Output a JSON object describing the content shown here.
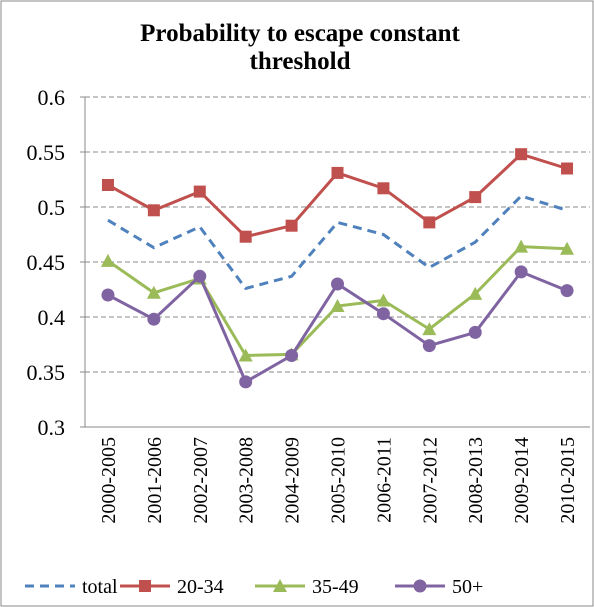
{
  "chart_data": {
    "type": "line",
    "title": "Probability to escape constant threshold",
    "categories": [
      "2000-2005",
      "2001-2006",
      "2002-2007",
      "2003-2008",
      "2004-2009",
      "2005-2010",
      "2006-2011",
      "2007-2012",
      "2008-2013",
      "2009-2014",
      "2010-2015"
    ],
    "series": [
      {
        "name": "total",
        "color": "#4f81bd",
        "dash": true,
        "marker": "none",
        "values": [
          0.488,
          0.463,
          0.482,
          0.426,
          0.437,
          0.486,
          0.475,
          0.445,
          0.468,
          0.51,
          0.497
        ]
      },
      {
        "name": "20-34",
        "color": "#c0504d",
        "dash": false,
        "marker": "square",
        "values": [
          0.52,
          0.497,
          0.514,
          0.473,
          0.483,
          0.531,
          0.517,
          0.486,
          0.509,
          0.548,
          0.535
        ]
      },
      {
        "name": "35-49",
        "color": "#9bbb59",
        "dash": false,
        "marker": "triangle",
        "values": [
          0.451,
          0.422,
          0.435,
          0.365,
          0.366,
          0.41,
          0.415,
          0.389,
          0.421,
          0.464,
          0.462
        ]
      },
      {
        "name": "50+",
        "color": "#8064a2",
        "dash": false,
        "marker": "circle",
        "values": [
          0.42,
          0.398,
          0.437,
          0.341,
          0.365,
          0.43,
          0.403,
          0.374,
          0.386,
          0.441,
          0.424
        ]
      }
    ],
    "ylim": [
      0.3,
      0.6
    ],
    "yticks": [
      0.3,
      0.35,
      0.4,
      0.45,
      0.5,
      0.55,
      0.6
    ],
    "grid": true,
    "legend": "bottom"
  }
}
